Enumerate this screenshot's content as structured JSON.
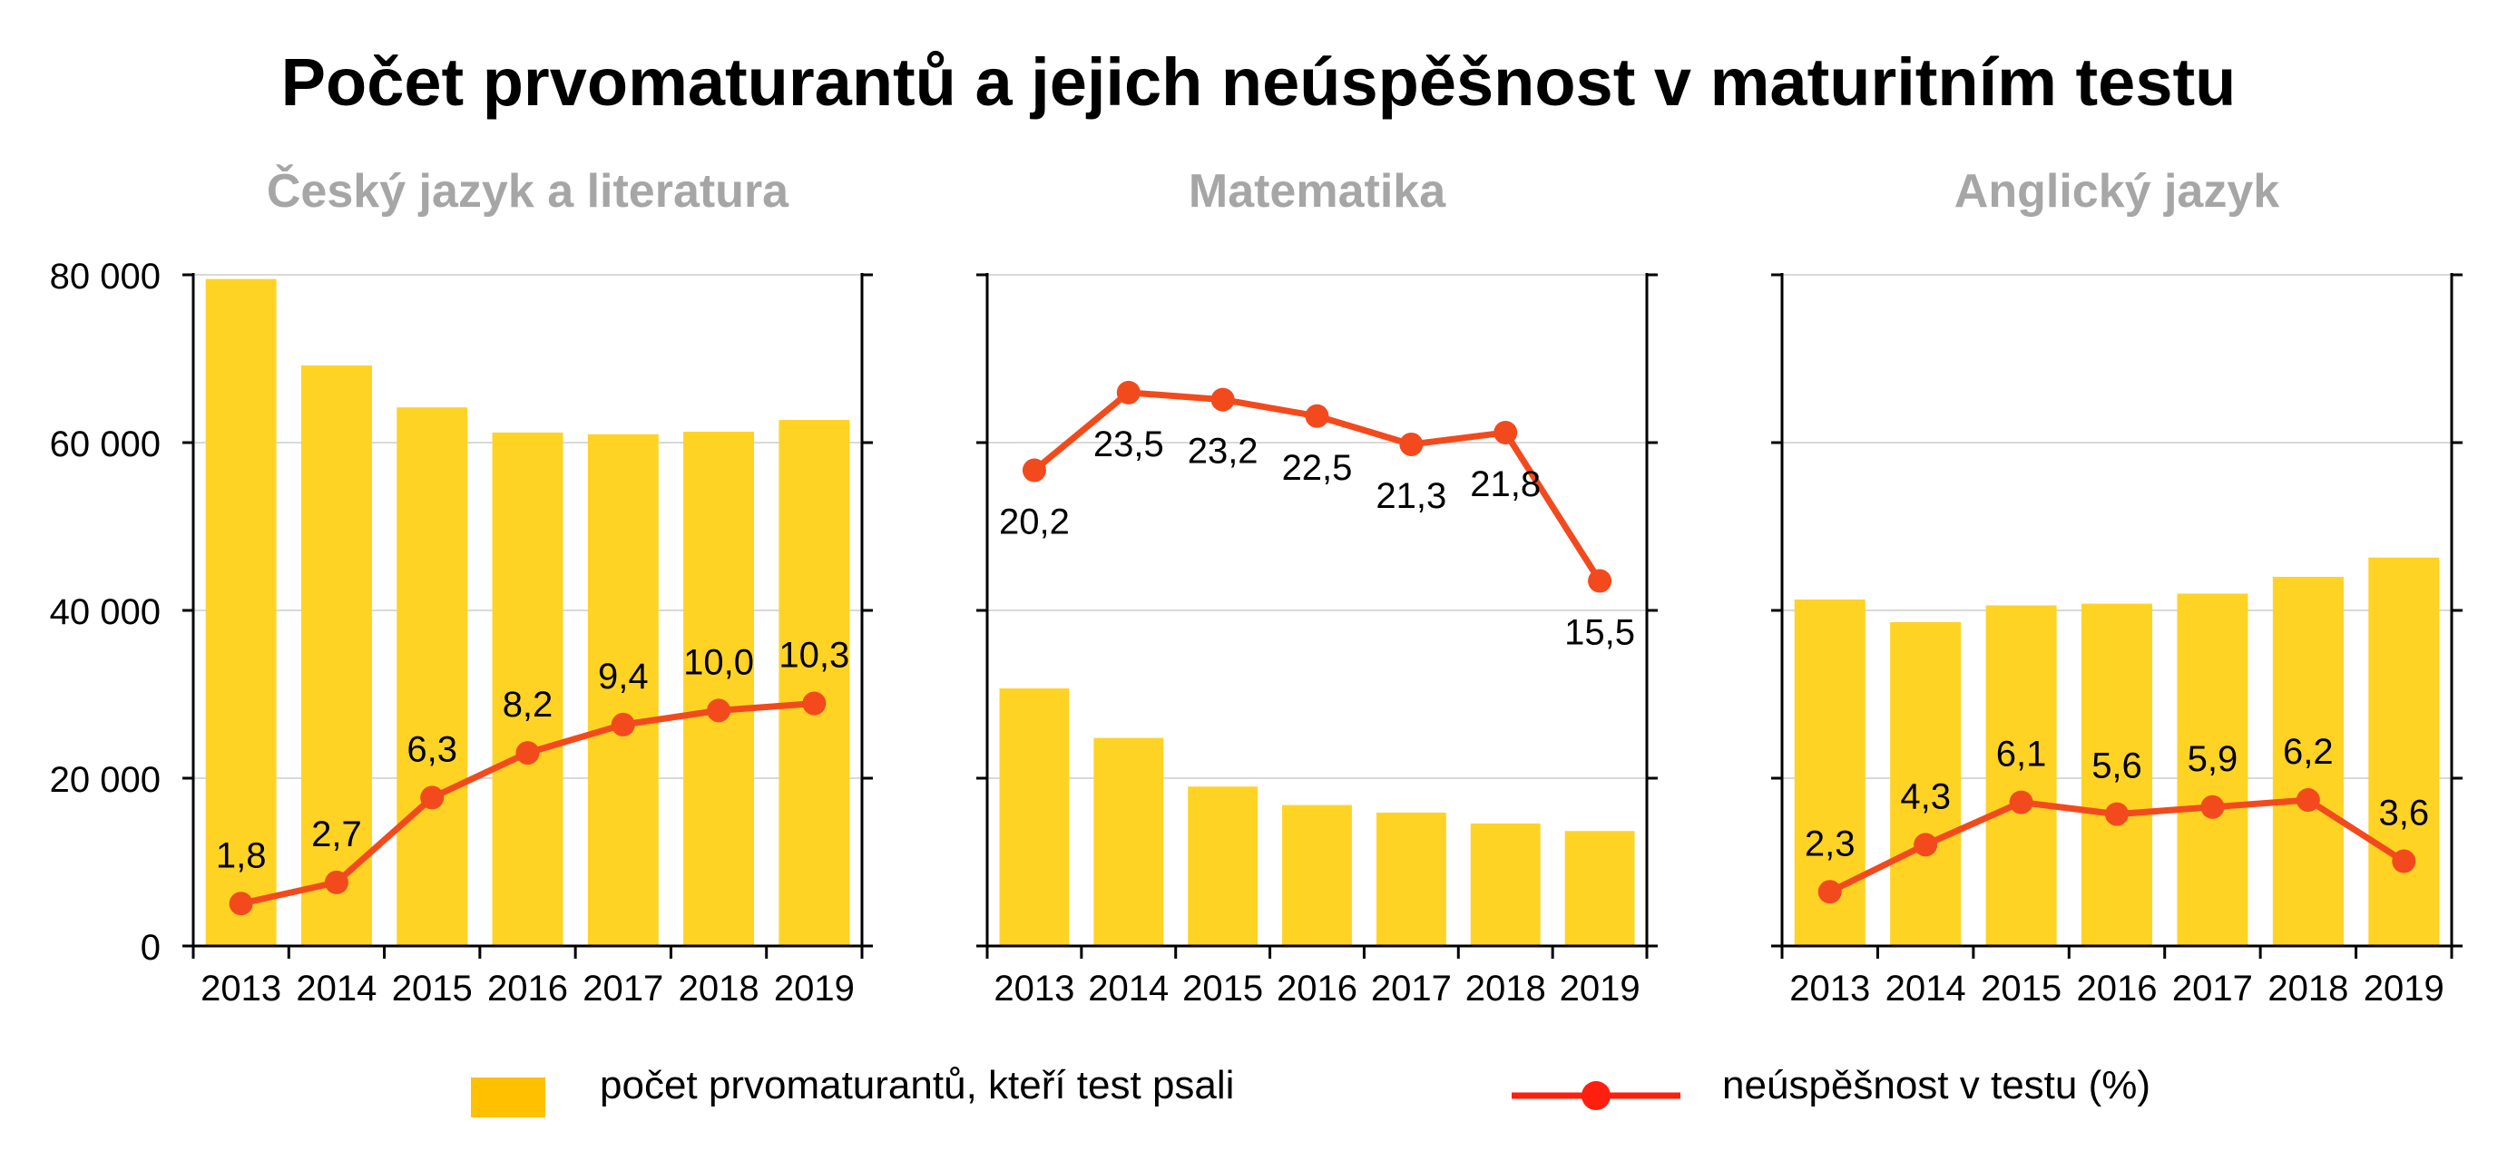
{
  "title": "Počet prvomaturantů a jejich neúspěšnost v maturitním testu",
  "legend": {
    "bar_label": "počet prvomaturantů, kteří test psali",
    "line_label": "neúspěšnost v testu (%)"
  },
  "colors": {
    "bar": "#FFD324",
    "bar_legend": "#FFC000",
    "line": "#F24A1D",
    "legend_line": "#FF1F0F",
    "panel_title": "#A6A6A6"
  },
  "chart_data": [
    {
      "type": "bar",
      "title": "Český jazyk a literatura",
      "categories": [
        "2013",
        "2014",
        "2015",
        "2016",
        "2017",
        "2018",
        "2019"
      ],
      "ylim": [
        0,
        80000
      ],
      "yticks": [
        "0",
        "20 000",
        "40 000",
        "60 000",
        "80 000"
      ],
      "series": [
        {
          "name": "počet prvomaturantů, kteří test psali",
          "type": "bar",
          "values": [
            79500,
            69200,
            64200,
            61200,
            61000,
            61300,
            62700
          ]
        },
        {
          "name": "neúspěšnost v testu (%)",
          "type": "line",
          "values": [
            1.8,
            2.7,
            6.3,
            8.2,
            9.4,
            10.0,
            10.3
          ],
          "labels": [
            "1,8",
            "2,7",
            "6,3",
            "8,2",
            "9,4",
            "10,0",
            "10,3"
          ]
        }
      ]
    },
    {
      "type": "bar",
      "title": "Matematika",
      "categories": [
        "2013",
        "2014",
        "2015",
        "2016",
        "2017",
        "2018",
        "2019"
      ],
      "ylim": [
        0,
        80000
      ],
      "series": [
        {
          "name": "počet prvomaturantů, kteří test psali",
          "type": "bar",
          "values": [
            30700,
            24800,
            19000,
            16800,
            15900,
            14600,
            13700
          ]
        },
        {
          "name": "neúspěšnost v testu (%)",
          "type": "line",
          "values": [
            20.2,
            23.5,
            23.2,
            22.5,
            21.3,
            21.8,
            15.5
          ],
          "labels": [
            "20,2",
            "23,5",
            "23,2",
            "22,5",
            "21,3",
            "21,8",
            "15,5"
          ]
        }
      ]
    },
    {
      "type": "bar",
      "title": "Anglický jazyk",
      "categories": [
        "2013",
        "2014",
        "2015",
        "2016",
        "2017",
        "2018",
        "2019"
      ],
      "ylim": [
        0,
        80000
      ],
      "series": [
        {
          "name": "počet prvomaturantů, kteří test psali",
          "type": "bar",
          "values": [
            41300,
            38600,
            40600,
            40800,
            42000,
            44000,
            46300
          ]
        },
        {
          "name": "neúspěšnost v testu (%)",
          "type": "line",
          "values": [
            2.3,
            4.3,
            6.1,
            5.6,
            5.9,
            6.2,
            3.6
          ],
          "labels": [
            "2,3",
            "4,3",
            "6,1",
            "5,6",
            "5,9",
            "6,2",
            "3,6"
          ]
        }
      ]
    }
  ]
}
